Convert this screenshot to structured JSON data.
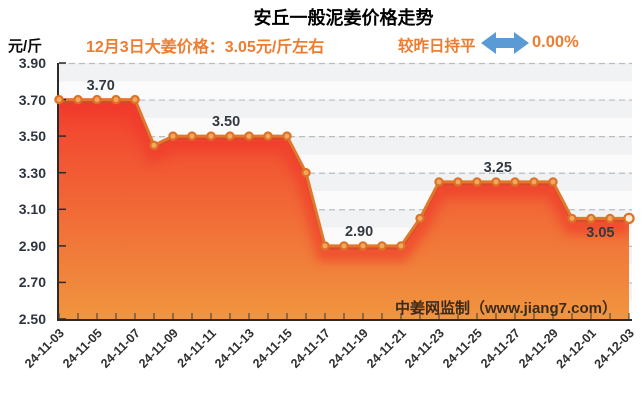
{
  "header": {
    "title": "安丘一般泥姜价格走势",
    "unit_label": "元/斤",
    "price_note": "12月3日大姜价格：3.05元/斤左右",
    "change_label": "较昨日持平",
    "change_percent": "0.00%",
    "arrow_icon": "left-right-arrow"
  },
  "watermark": "中姜网监制（www.jiang7.com）",
  "colors": {
    "accent_orange": "#ED7D31",
    "arrow_blue": "#5B9BD5",
    "line_orange": "#E2762B",
    "line_shadow_red": "#D14A2C",
    "marker_ring": "#DD7226",
    "marker_center": "#F4A85E",
    "last_marker_center": "#FDEBD3",
    "fill_top_red": "#F23E2E",
    "fill_bottom_orange": "#F0953F",
    "near_line_red": "#EF382A",
    "axis_dark": "#2B2B2B",
    "grid_dash_gray": "#B9BDC2",
    "label_dark": "#333A40"
  },
  "chart_data": {
    "type": "area",
    "title": "安丘一般泥姜价格走势",
    "xlabel": "",
    "ylabel": "元/斤",
    "ylim": [
      2.5,
      3.9
    ],
    "y_tick_step": 0.2,
    "y_ticks": [
      "3.90",
      "3.70",
      "3.50",
      "3.30",
      "3.10",
      "2.90",
      "2.70",
      "2.50"
    ],
    "grid": "dashed major gridlines, striped minor bands",
    "legend_position": "none",
    "x": [
      "24-11-03",
      "24-11-04",
      "24-11-05",
      "24-11-06",
      "24-11-07",
      "24-11-08",
      "24-11-09",
      "24-11-10",
      "24-11-11",
      "24-11-12",
      "24-11-13",
      "24-11-14",
      "24-11-15",
      "24-11-16",
      "24-11-17",
      "24-11-18",
      "24-11-19",
      "24-11-20",
      "24-11-21",
      "24-11-22",
      "24-11-23",
      "24-11-24",
      "24-11-25",
      "24-11-26",
      "24-11-27",
      "24-11-28",
      "24-11-29",
      "24-11-30",
      "24-12-01",
      "24-12-02",
      "24-12-03"
    ],
    "x_tick_labels": [
      "24-11-03",
      "24-11-05",
      "24-11-07",
      "24-11-09",
      "24-11-11",
      "24-11-13",
      "24-11-15",
      "24-11-17",
      "24-11-19",
      "24-11-21",
      "24-11-23",
      "24-11-25",
      "24-11-27",
      "24-11-29",
      "24-12-01",
      "24-12-03"
    ],
    "values": [
      3.7,
      3.7,
      3.7,
      3.7,
      3.7,
      3.45,
      3.5,
      3.5,
      3.5,
      3.5,
      3.5,
      3.5,
      3.5,
      3.3,
      2.9,
      2.9,
      2.9,
      2.9,
      2.9,
      3.05,
      3.25,
      3.25,
      3.25,
      3.25,
      3.25,
      3.25,
      3.25,
      3.05,
      3.05,
      3.05,
      3.05
    ],
    "point_labels": [
      {
        "text": "3.70",
        "value": 3.7,
        "day": 2.3,
        "side": "above"
      },
      {
        "text": "3.50",
        "value": 3.5,
        "day": 8.9,
        "side": "above"
      },
      {
        "text": "2.90",
        "value": 2.9,
        "day": 15.9,
        "side": "above"
      },
      {
        "text": "3.25",
        "value": 3.25,
        "day": 23.2,
        "side": "above"
      },
      {
        "text": "3.05",
        "value": 3.05,
        "day": 28.6,
        "side": "below"
      }
    ]
  }
}
